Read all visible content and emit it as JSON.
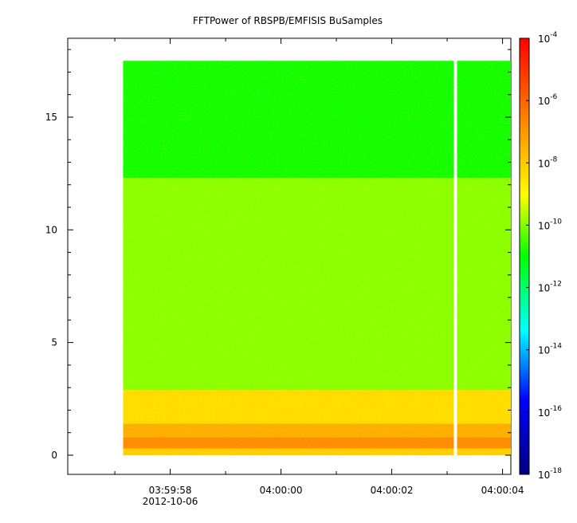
{
  "chart_data": {
    "type": "heatmap",
    "title": "FFTPower of RBSPB/EMFISIS  BuSamples",
    "xlabel": "",
    "ylabel": "",
    "x_ticks": [
      {
        "label": "03:59:58",
        "t": -2
      },
      {
        "label": "04:00:00",
        "t": 0
      },
      {
        "label": "04:00:02",
        "t": 2
      },
      {
        "label": "04:00:04",
        "t": 4
      }
    ],
    "x_date_label": "2012-10-06",
    "xlim_seconds_from_0400": [
      -3.85,
      4.15
    ],
    "y_ticks": [
      0,
      5,
      10,
      15
    ],
    "ylim": [
      -0.85,
      18.5
    ],
    "data_extent": {
      "t_start": -2.85,
      "t_end": 4.15,
      "y_min": 0,
      "y_max": 17.5,
      "gap_t": 3.15
    },
    "bands": [
      {
        "y_from": 12.3,
        "y_to": 17.5,
        "log10_power": -11.0
      },
      {
        "y_from": 2.9,
        "y_to": 12.3,
        "log10_power": -10.0
      },
      {
        "y_from": 1.4,
        "y_to": 2.9,
        "log10_power": -8.3
      },
      {
        "y_from": 0.8,
        "y_to": 1.4,
        "log10_power": -7.3
      },
      {
        "y_from": 0.3,
        "y_to": 0.8,
        "log10_power": -6.6
      },
      {
        "y_from": 0.0,
        "y_to": 0.3,
        "log10_power": -8.0
      }
    ],
    "colorbar": {
      "scale": "log",
      "range": [
        "1e-18",
        "1e-4"
      ],
      "ticks": [
        {
          "base": "10",
          "exp": "-4",
          "value": -4
        },
        {
          "base": "10",
          "exp": "-6",
          "value": -6
        },
        {
          "base": "10",
          "exp": "-8",
          "value": -8
        },
        {
          "base": "10",
          "exp": "-10",
          "value": -10
        },
        {
          "base": "10",
          "exp": "-12",
          "value": -12
        },
        {
          "base": "10",
          "exp": "-14",
          "value": -14
        },
        {
          "base": "10",
          "exp": "-16",
          "value": -16
        },
        {
          "base": "10",
          "exp": "-18",
          "value": -18
        }
      ],
      "colormap": [
        "#00007f",
        "#0000ff",
        "#00ffff",
        "#00ff00",
        "#ffff00",
        "#ff7f00",
        "#ff0000"
      ]
    }
  }
}
